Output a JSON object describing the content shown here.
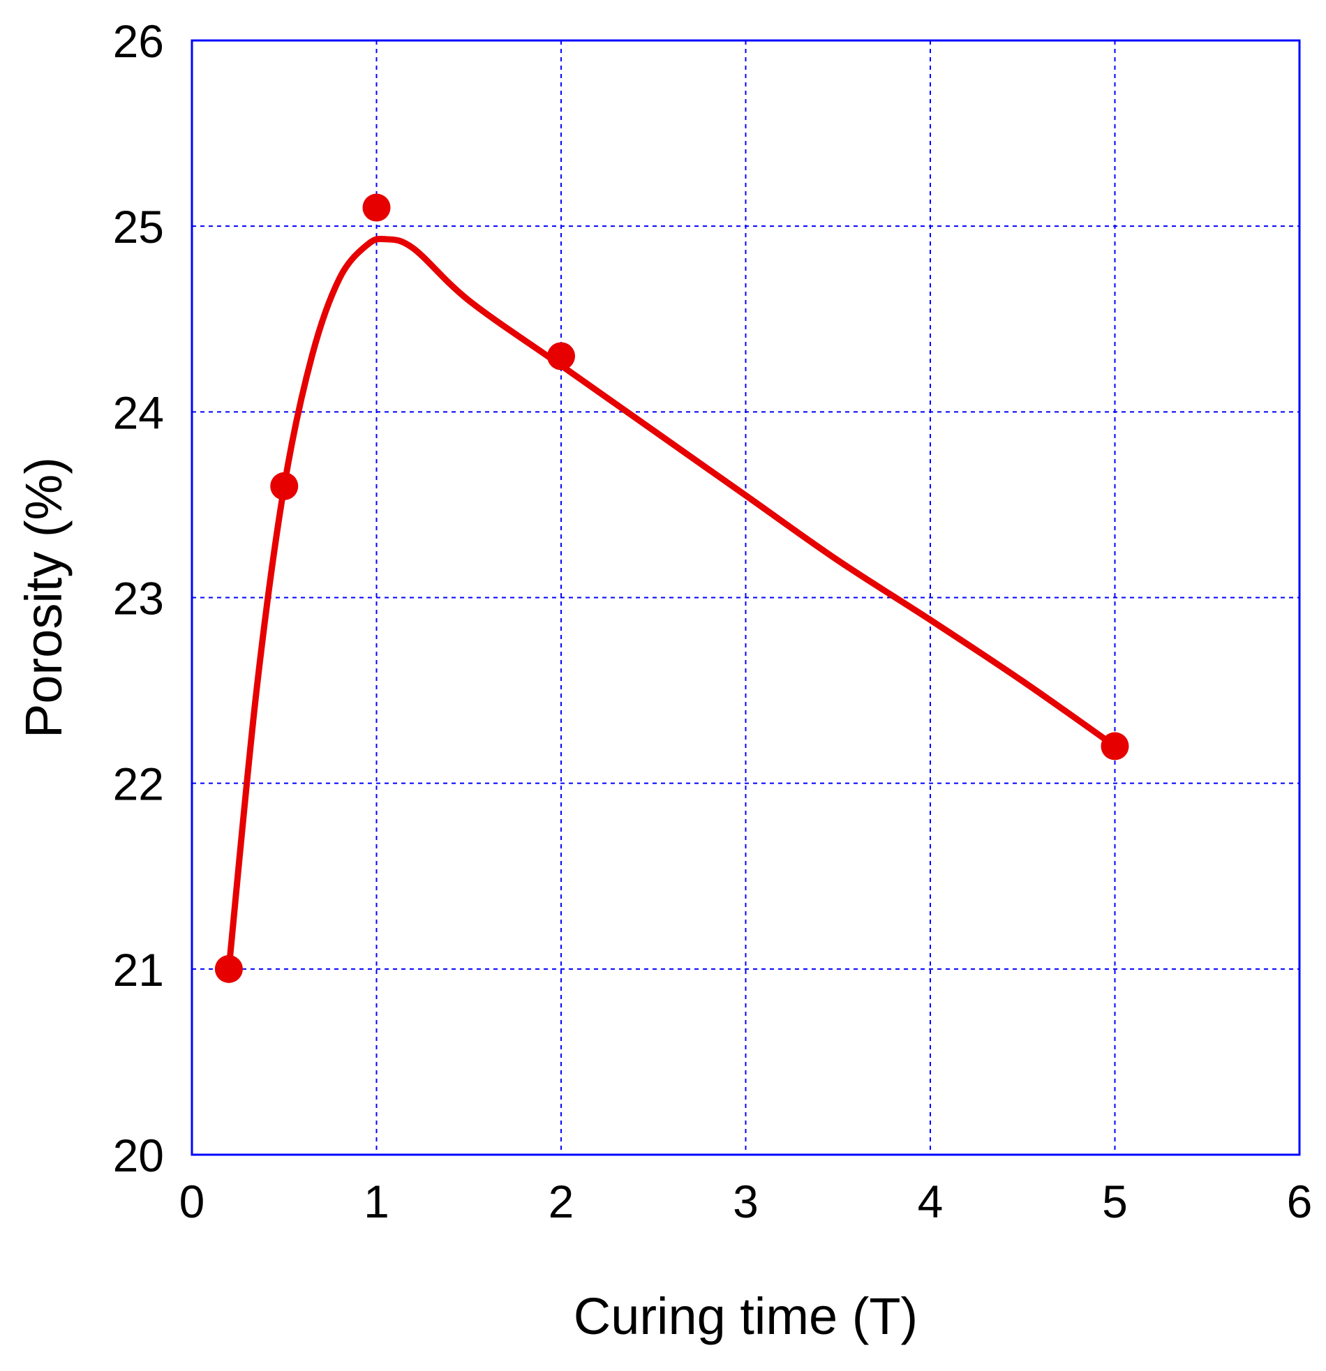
{
  "chart_data": {
    "type": "line",
    "title": "",
    "xlabel": "Curing time  (T)",
    "ylabel": "Porosity (%)",
    "xlim": [
      0,
      6
    ],
    "ylim": [
      20,
      26
    ],
    "x_ticks": [
      "0",
      "1",
      "2",
      "3",
      "4",
      "5",
      "6"
    ],
    "y_ticks": [
      "20",
      "21",
      "22",
      "23",
      "24",
      "25",
      "26"
    ],
    "grid": true,
    "series": [
      {
        "x": [
          0.2,
          0.5,
          1,
          2,
          5
        ],
        "values": [
          21.0,
          23.6,
          25.1,
          24.3,
          22.2
        ],
        "marker": "circle",
        "color": "#e60000"
      }
    ],
    "fit_curve": {
      "x": [
        0.2,
        0.35,
        0.5,
        0.65,
        0.8,
        0.95,
        1.05,
        1.2,
        1.5,
        2,
        2.5,
        3,
        3.5,
        4,
        4.5,
        5
      ],
      "values": [
        21.0,
        22.5,
        23.6,
        24.3,
        24.72,
        24.9,
        24.93,
        24.88,
        24.6,
        24.25,
        23.9,
        23.55,
        23.2,
        22.88,
        22.55,
        22.2
      ],
      "color": "#e60000"
    }
  }
}
